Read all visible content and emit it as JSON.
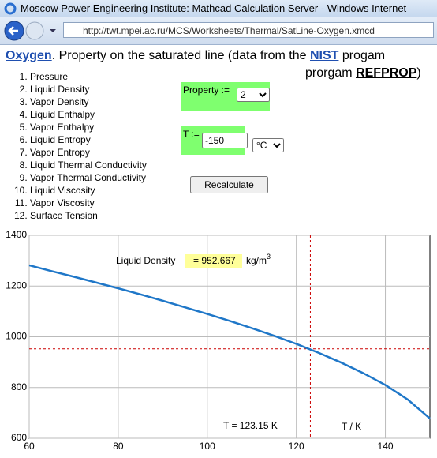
{
  "window": {
    "title": "Moscow Power Engineering Institute: Mathcad Calculation Server - Windows Internet Explorer",
    "url": "http://twt.mpei.ac.ru/MCS/Worksheets/Thermal/SatLine-Oxygen.xmcd"
  },
  "heading": {
    "link": "Oxygen",
    "text": ". Property on the saturated line (data from the ",
    "nist": "NIST",
    "text2": " progam",
    "text3": "prorgam ",
    "refprop": "REFPROP",
    "text4": ")"
  },
  "properties": [
    "Pressure",
    "Liquid Density",
    "Vapor Density",
    "Liquid Enthalpy",
    "Vapor Enthalpy",
    "Liquid Entropy",
    "Vapor Entropy",
    "Liquid Thermal Conductivity",
    "Vapor Thermal Conductivity",
    "Liquid Viscosity",
    "Vapor Viscosity",
    "Surface Tension"
  ],
  "form": {
    "property_label": "Property :=",
    "property_value": "2",
    "t_label": "T :=",
    "t_value": "-150",
    "t_unit": "°C",
    "button": "Recalculate"
  },
  "chart_data": {
    "type": "line",
    "x": [
      60,
      65,
      70,
      75,
      80,
      85,
      90,
      95,
      100,
      105,
      110,
      115,
      120,
      125,
      130,
      135,
      140,
      145,
      150
    ],
    "series": [
      {
        "name": "Liquid Density",
        "color": "#1f77c8",
        "values": [
          1282,
          1259,
          1237,
          1214,
          1191,
          1167,
          1142,
          1116,
          1090,
          1063,
          1034,
          1004,
          972,
          937,
          899,
          857,
          810,
          753,
          678
        ]
      }
    ],
    "xlim": [
      60,
      150
    ],
    "ylim": [
      600,
      1400
    ],
    "xticks": [
      60,
      80,
      100,
      120,
      140
    ],
    "yticks": [
      600,
      800,
      1000,
      1200,
      1400
    ],
    "grid": true,
    "x_label": "T / K",
    "cursor": {
      "x": 123.15,
      "y": 952.667,
      "x_label": "T = 123.15 K",
      "y_label": "= 952.667",
      "unit": "kg/m",
      "unit_power": "3",
      "color": "#cc0000"
    }
  }
}
